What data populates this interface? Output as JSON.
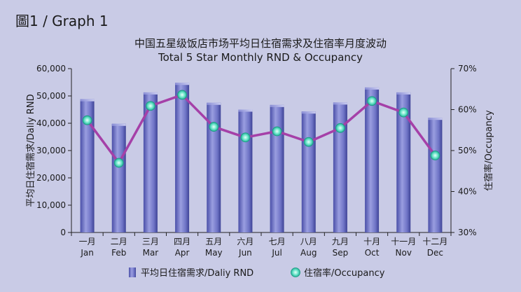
{
  "figure_label": "圖1 / Graph 1",
  "chart_data": {
    "type": "bar+line",
    "title_zh": "中国五星级饭店市场平均日住宿需求及住宿率月度波动",
    "title_en": "Total 5 Star Monthly RND & Occupancy",
    "categories_zh": [
      "一月",
      "二月",
      "三月",
      "四月",
      "五月",
      "六月",
      "七月",
      "八月",
      "九月",
      "十月",
      "十一月",
      "十二月"
    ],
    "categories_en": [
      "Jan",
      "Feb",
      "Mar",
      "Apr",
      "May",
      "Jun",
      "Jul",
      "Aug",
      "Sep",
      "Oct",
      "Nov",
      "Dec"
    ],
    "ylabel_left": "平均日住宿需求/Daliy RND",
    "ylabel_right": "住宿率/Occupancy",
    "ylim_left": [
      0,
      60000
    ],
    "yticks_left": [
      "0",
      "10,000",
      "20,000",
      "30,000",
      "40,000",
      "50,000",
      "60,000"
    ],
    "ylim_right": [
      30,
      70
    ],
    "yticks_right": [
      "30%",
      "40%",
      "50%",
      "60%",
      "70%"
    ],
    "series": [
      {
        "name": "平均日住宿需求/Daliy RND",
        "type": "bar",
        "axis": "left",
        "values": [
          48800,
          39800,
          51300,
          54800,
          47500,
          45000,
          46700,
          44300,
          47600,
          53100,
          51300,
          42000
        ]
      },
      {
        "name": "住宿率/Occupancy",
        "type": "line",
        "axis": "right",
        "values": [
          57.4,
          47.0,
          60.9,
          63.6,
          55.8,
          53.2,
          54.7,
          52.1,
          55.5,
          62.1,
          59.3,
          48.8
        ]
      }
    ],
    "colors": {
      "bar": "#5d62b8",
      "line": "#a540a8",
      "marker": "#3fd6b6"
    },
    "legend_position": "bottom",
    "grid": false
  }
}
